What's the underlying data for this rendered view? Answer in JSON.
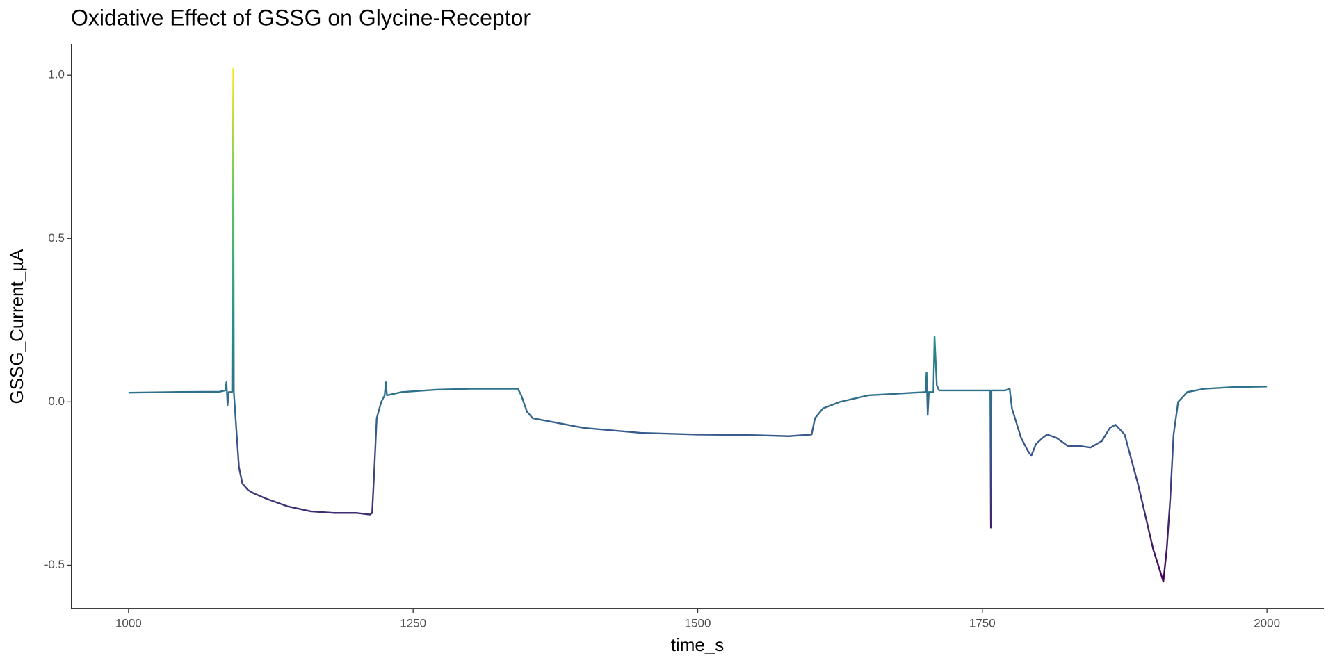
{
  "chart_data": {
    "type": "line",
    "title": "Oxidative Effect of GSSG on Glycine-Receptor",
    "x_label": "time_s",
    "y_label": "GSSG_Current_µA",
    "x": [
      1000,
      1040,
      1080,
      1085,
      1086,
      1087,
      1088,
      1091,
      1092,
      1092.5,
      1095,
      1097,
      1100,
      1105,
      1110,
      1120,
      1140,
      1160,
      1180,
      1200,
      1212,
      1214,
      1216,
      1218,
      1222,
      1225,
      1226,
      1227,
      1240,
      1270,
      1300,
      1330,
      1342,
      1345,
      1350,
      1355,
      1370,
      1400,
      1450,
      1500,
      1550,
      1580,
      1600,
      1603,
      1610,
      1625,
      1650,
      1690,
      1700,
      1701,
      1702,
      1703,
      1707,
      1708,
      1710,
      1712,
      1740,
      1757,
      1757.5,
      1758,
      1770,
      1774,
      1776,
      1784,
      1790,
      1793,
      1797,
      1803,
      1807,
      1815,
      1825,
      1835,
      1845,
      1855,
      1862,
      1867,
      1875,
      1887,
      1900,
      1909,
      1912,
      1915,
      1918,
      1922,
      1930,
      1945,
      1970,
      2000
    ],
    "series": [
      {
        "name": "GSSG_Current_µA",
        "color_scale": [
          "#440154",
          "#3b528b",
          "#21918c",
          "#5ec962",
          "#fde725"
        ],
        "values": [
          0.028,
          0.03,
          0.031,
          0.035,
          0.06,
          -0.01,
          0.03,
          0.03,
          1.02,
          0.03,
          -0.1,
          -0.2,
          -0.25,
          -0.27,
          -0.28,
          -0.295,
          -0.32,
          -0.335,
          -0.34,
          -0.34,
          -0.345,
          -0.34,
          -0.2,
          -0.05,
          0.0,
          0.02,
          0.06,
          0.02,
          0.03,
          0.037,
          0.04,
          0.04,
          0.04,
          0.02,
          -0.03,
          -0.05,
          -0.06,
          -0.08,
          -0.095,
          -0.1,
          -0.102,
          -0.105,
          -0.1,
          -0.05,
          -0.02,
          0.0,
          0.02,
          0.028,
          0.03,
          0.09,
          -0.04,
          0.03,
          0.03,
          0.2,
          0.05,
          0.035,
          0.035,
          0.035,
          -0.385,
          0.035,
          0.035,
          0.04,
          -0.02,
          -0.11,
          -0.15,
          -0.165,
          -0.13,
          -0.11,
          -0.1,
          -0.11,
          -0.135,
          -0.135,
          -0.14,
          -0.12,
          -0.08,
          -0.07,
          -0.1,
          -0.255,
          -0.45,
          -0.55,
          -0.45,
          -0.3,
          -0.1,
          0.0,
          0.03,
          0.04,
          0.045,
          0.047
        ]
      }
    ],
    "xlim": [
      950,
      2050
    ],
    "xticks": [
      1000,
      1250,
      1500,
      1750,
      2000
    ],
    "ylim": [
      -0.633,
      1.094
    ],
    "yticks": [
      -0.5,
      {
        "value": 0,
        "label": "0.0"
      },
      0.5,
      {
        "value": 1,
        "label": "1.0"
      }
    ],
    "grid": false
  }
}
